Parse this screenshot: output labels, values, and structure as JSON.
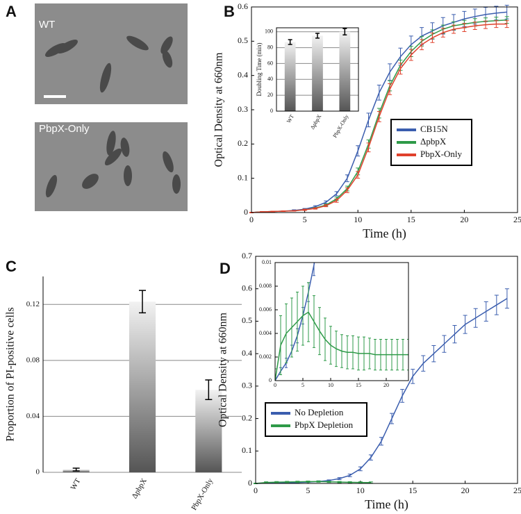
{
  "panel_a": {
    "panel_label": "A",
    "images": [
      {
        "label": "WT"
      },
      {
        "label": "PbpX-Only"
      }
    ]
  },
  "chart_data": [
    {
      "type": "line",
      "panel_label": "B",
      "xlabel": "Time (h)",
      "ylabel": "Optical Density at 660nm",
      "x": [
        0,
        1,
        2,
        3,
        4,
        5,
        6,
        7,
        8,
        9,
        10,
        11,
        12,
        13,
        14,
        15,
        16,
        17,
        18,
        19,
        20,
        21,
        22,
        23,
        24
      ],
      "xlim": [
        0,
        25
      ],
      "xticks": [
        0,
        5,
        10,
        15,
        20,
        25
      ],
      "ylim": [
        0,
        0.6
      ],
      "yticks": [
        0,
        0.1,
        0.2,
        0.3,
        0.4,
        0.5,
        0.6
      ],
      "legend_position": "lower right",
      "series": [
        {
          "name": "CB15N",
          "color": "#3a5dae",
          "values": [
            0,
            0.002,
            0.003,
            0.004,
            0.006,
            0.01,
            0.017,
            0.03,
            0.055,
            0.1,
            0.18,
            0.27,
            0.35,
            0.41,
            0.455,
            0.49,
            0.515,
            0.53,
            0.545,
            0.555,
            0.565,
            0.572,
            0.578,
            0.582,
            0.585
          ],
          "errors": [
            0.001,
            0.001,
            0.001,
            0.001,
            0.002,
            0.002,
            0.003,
            0.004,
            0.006,
            0.01,
            0.015,
            0.02,
            0.022,
            0.024,
            0.025,
            0.025,
            0.025,
            0.024,
            0.024,
            0.023,
            0.022,
            0.022,
            0.021,
            0.02,
            0.02
          ]
        },
        {
          "name": "ΔpbpX",
          "color": "#2e9a48",
          "values": [
            0,
            0.002,
            0.003,
            0.004,
            0.005,
            0.008,
            0.013,
            0.022,
            0.04,
            0.07,
            0.12,
            0.2,
            0.29,
            0.37,
            0.43,
            0.47,
            0.5,
            0.52,
            0.535,
            0.545,
            0.55,
            0.555,
            0.558,
            0.56,
            0.562
          ],
          "errors": [
            0.001,
            0.001,
            0.001,
            0.001,
            0.001,
            0.002,
            0.002,
            0.003,
            0.005,
            0.007,
            0.01,
            0.012,
            0.014,
            0.015,
            0.015,
            0.015,
            0.014,
            0.013,
            0.012,
            0.012,
            0.011,
            0.011,
            0.01,
            0.01,
            0.01
          ]
        },
        {
          "name": "PbpX-Only",
          "color": "#e0412c",
          "values": [
            0,
            0.002,
            0.003,
            0.004,
            0.005,
            0.008,
            0.012,
            0.02,
            0.035,
            0.065,
            0.11,
            0.19,
            0.28,
            0.36,
            0.42,
            0.46,
            0.49,
            0.51,
            0.525,
            0.535,
            0.54,
            0.545,
            0.548,
            0.55,
            0.55
          ],
          "errors": [
            0.001,
            0.001,
            0.001,
            0.001,
            0.001,
            0.002,
            0.002,
            0.003,
            0.005,
            0.007,
            0.01,
            0.013,
            0.015,
            0.016,
            0.016,
            0.016,
            0.015,
            0.014,
            0.013,
            0.012,
            0.012,
            0.011,
            0.011,
            0.01,
            0.01
          ]
        }
      ]
    },
    {
      "type": "bar",
      "ylabel": "Doubling Time (min)",
      "grid": true,
      "categories": [
        "WT",
        "ΔpbpX",
        "PbpX-Only"
      ],
      "values": [
        87,
        95,
        100
      ],
      "errors": [
        3,
        3,
        4
      ],
      "ylim": [
        0,
        105
      ],
      "yticks": [
        0,
        20,
        40,
        60,
        80,
        100
      ]
    },
    {
      "type": "bar",
      "panel_label": "C",
      "ylabel": "Proportion of PI-positive cells",
      "grid": true,
      "categories": [
        "WT",
        "ΔpbpX",
        "PbpX-Only"
      ],
      "values": [
        0.002,
        0.122,
        0.059
      ],
      "errors": [
        0.001,
        0.008,
        0.007
      ],
      "ylim": [
        0,
        0.14
      ],
      "yticks": [
        0,
        0.04,
        0.08,
        0.12
      ]
    },
    {
      "type": "line",
      "panel_label": "D",
      "xlabel": "Time (h)",
      "ylabel": "Optical Density at 660nm",
      "x": [
        0,
        1,
        2,
        3,
        4,
        5,
        6,
        7,
        8,
        9,
        10,
        11,
        12,
        13,
        14,
        15,
        16,
        17,
        18,
        19,
        20,
        21,
        22,
        23,
        24
      ],
      "xlim": [
        0,
        25
      ],
      "xticks": [
        0,
        5,
        10,
        15,
        20,
        25
      ],
      "ylim": [
        0,
        0.7
      ],
      "yticks": [
        0,
        0.1,
        0.2,
        0.3,
        0.4,
        0.5,
        0.6,
        0.7
      ],
      "legend_position": "lower left",
      "series": [
        {
          "name": "No Depletion",
          "color": "#3a5dae",
          "values": [
            0,
            0.001,
            0.001,
            0.002,
            0.003,
            0.004,
            0.006,
            0.009,
            0.015,
            0.025,
            0.045,
            0.08,
            0.13,
            0.2,
            0.27,
            0.33,
            0.37,
            0.4,
            0.43,
            0.46,
            0.49,
            0.51,
            0.53,
            0.55,
            0.57
          ],
          "errors": [
            0.001,
            0.001,
            0.001,
            0.001,
            0.001,
            0.001,
            0.002,
            0.002,
            0.003,
            0.004,
            0.006,
            0.008,
            0.012,
            0.016,
            0.02,
            0.022,
            0.024,
            0.025,
            0.026,
            0.027,
            0.028,
            0.029,
            0.03,
            0.03,
            0.03
          ]
        },
        {
          "name": "PbpX Depletion",
          "color": "#2e9a48",
          "values": [
            0,
            0.003,
            0.004,
            0.0045,
            0.005,
            0.0055,
            0.0058,
            0.005,
            0.0042,
            0.0035,
            0.003,
            0.0027,
            null,
            null,
            null,
            null,
            null,
            null,
            null,
            null,
            null,
            null,
            null,
            null,
            null
          ],
          "errors": [
            0.001,
            0.002,
            0.002,
            0.002,
            0.002,
            0.002,
            0.002,
            0.002,
            0.002,
            0.002,
            0.002,
            0.002,
            null,
            null,
            null,
            null,
            null,
            null,
            null,
            null,
            null,
            null,
            null,
            null,
            null
          ]
        }
      ]
    },
    {
      "type": "line",
      "x": [
        0,
        1,
        2,
        3,
        4,
        5,
        6,
        7,
        8,
        9,
        10,
        11,
        12,
        13,
        14,
        15,
        16,
        17,
        18,
        19,
        20,
        21,
        22,
        23,
        24
      ],
      "xlim": [
        0,
        24
      ],
      "xticks": [
        0,
        5,
        10,
        15,
        20
      ],
      "ylim": [
        0,
        0.01
      ],
      "yticks": [
        0,
        0.002,
        0.004,
        0.006,
        0.008,
        0.01
      ],
      "series": [
        {
          "color": "#3a5dae",
          "values": [
            0,
            0.0008,
            0.0015,
            0.0025,
            0.0038,
            0.0055,
            0.0075,
            0.0098,
            0.013,
            null,
            null,
            null,
            null,
            null,
            null,
            null,
            null,
            null,
            null,
            null,
            null,
            null,
            null,
            null,
            null
          ],
          "errors": [
            0.0002,
            0.0003,
            0.0004,
            0.0005,
            0.0006,
            0.0007,
            0.0008,
            0.0009,
            0.001,
            null,
            null,
            null,
            null,
            null,
            null,
            null,
            null,
            null,
            null,
            null,
            null,
            null,
            null,
            null,
            null
          ]
        },
        {
          "color": "#2e9a48",
          "values": [
            0,
            0.003,
            0.004,
            0.0045,
            0.005,
            0.0055,
            0.0058,
            0.005,
            0.0042,
            0.0035,
            0.003,
            0.0027,
            0.0025,
            0.0024,
            0.0024,
            0.0023,
            0.0023,
            0.0023,
            0.0022,
            0.0022,
            0.0022,
            0.0022,
            0.0022,
            0.0022,
            0.0022
          ],
          "errors": [
            0.001,
            0.0025,
            0.0025,
            0.0025,
            0.0025,
            0.0025,
            0.0025,
            0.0022,
            0.002,
            0.0018,
            0.0016,
            0.0015,
            0.0014,
            0.0014,
            0.0014,
            0.0014,
            0.0014,
            0.0013,
            0.0013,
            0.0013,
            0.0013,
            0.0013,
            0.0013,
            0.0013,
            0.0013
          ]
        }
      ]
    }
  ]
}
